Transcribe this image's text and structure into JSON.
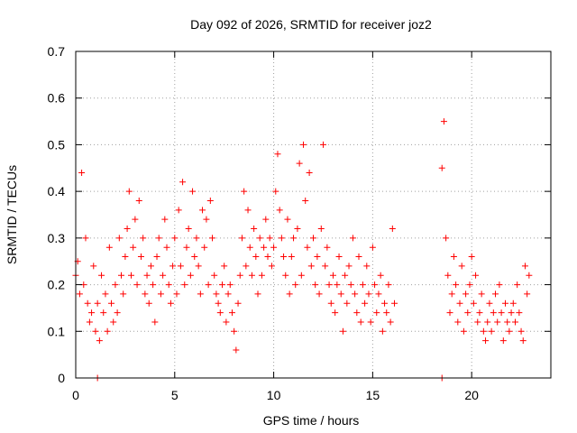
{
  "chart_data": {
    "type": "scatter",
    "title": "Day 092 of 2026, SRMTID for receiver joz2",
    "xlabel": "GPS time / hours",
    "ylabel": "SRMTID / TECUs",
    "xlim": [
      0,
      24
    ],
    "ylim": [
      0,
      0.7
    ],
    "xticks": [
      0,
      5,
      10,
      15,
      20
    ],
    "yticks": [
      0,
      0.1,
      0.2,
      0.3,
      0.4,
      0.5,
      0.6,
      0.7
    ],
    "xtick_labels": [
      "0",
      "5",
      "10",
      "15",
      "20"
    ],
    "ytick_labels": [
      "0",
      "0.1",
      "0.2",
      "0.3",
      "0.4",
      "0.5",
      "0.6",
      "0.7"
    ],
    "grid": true,
    "marker": "+",
    "color": "#ff0000",
    "series": [
      {
        "name": "SRMTID",
        "x": [
          0.0,
          0.1,
          0.2,
          0.3,
          0.4,
          0.5,
          0.6,
          0.7,
          0.8,
          0.9,
          1.0,
          1.1,
          1.2,
          1.3,
          1.4,
          1.5,
          1.6,
          1.7,
          1.8,
          1.9,
          2.0,
          2.1,
          2.2,
          2.3,
          2.4,
          2.5,
          2.6,
          2.7,
          2.8,
          2.9,
          3.0,
          3.1,
          3.2,
          3.3,
          3.4,
          3.5,
          3.6,
          3.7,
          3.8,
          3.9,
          4.0,
          4.1,
          4.2,
          4.3,
          4.4,
          4.5,
          4.6,
          4.7,
          4.8,
          4.9,
          5.0,
          5.1,
          5.2,
          5.3,
          5.4,
          5.5,
          5.6,
          5.7,
          5.8,
          5.9,
          6.0,
          6.1,
          6.2,
          6.3,
          6.4,
          6.5,
          6.6,
          6.7,
          6.8,
          6.9,
          7.0,
          7.1,
          7.2,
          7.3,
          7.4,
          7.5,
          7.6,
          7.7,
          7.8,
          7.9,
          8.0,
          8.1,
          8.2,
          8.3,
          8.4,
          8.5,
          8.6,
          8.7,
          8.8,
          8.9,
          9.0,
          9.1,
          9.2,
          9.3,
          9.4,
          9.5,
          9.6,
          9.7,
          9.8,
          9.9,
          10.0,
          10.1,
          10.2,
          10.3,
          10.4,
          10.5,
          10.6,
          10.7,
          10.8,
          10.9,
          11.0,
          11.1,
          11.2,
          11.3,
          11.4,
          11.5,
          11.6,
          11.7,
          11.8,
          11.9,
          12.0,
          12.1,
          12.2,
          12.3,
          12.4,
          12.5,
          12.6,
          12.7,
          12.8,
          12.9,
          13.0,
          13.1,
          13.2,
          13.3,
          13.4,
          13.5,
          13.6,
          13.7,
          13.8,
          13.9,
          14.0,
          14.1,
          14.2,
          14.3,
          14.4,
          14.5,
          14.6,
          14.7,
          14.8,
          14.9,
          15.0,
          15.1,
          15.2,
          15.3,
          15.4,
          15.5,
          15.6,
          15.7,
          15.8,
          15.9,
          16.0,
          16.1,
          18.5,
          18.6,
          18.7,
          18.8,
          18.9,
          19.0,
          19.1,
          19.2,
          19.3,
          19.4,
          19.5,
          19.6,
          19.7,
          19.8,
          19.9,
          20.0,
          20.1,
          20.2,
          20.3,
          20.4,
          20.5,
          20.6,
          20.7,
          20.8,
          20.9,
          21.0,
          21.1,
          21.2,
          21.3,
          21.4,
          21.5,
          21.6,
          21.7,
          21.8,
          21.9,
          22.0,
          22.1,
          22.2,
          22.3,
          22.4,
          22.5,
          22.6,
          22.7,
          22.8,
          22.9,
          1.1,
          18.5
        ],
        "y": [
          0.22,
          0.25,
          0.18,
          0.44,
          0.2,
          0.3,
          0.16,
          0.12,
          0.14,
          0.24,
          0.1,
          0.16,
          0.08,
          0.22,
          0.14,
          0.18,
          0.1,
          0.28,
          0.16,
          0.12,
          0.2,
          0.14,
          0.3,
          0.22,
          0.18,
          0.26,
          0.32,
          0.4,
          0.22,
          0.28,
          0.34,
          0.2,
          0.38,
          0.26,
          0.3,
          0.18,
          0.22,
          0.16,
          0.24,
          0.2,
          0.12,
          0.26,
          0.3,
          0.18,
          0.22,
          0.34,
          0.28,
          0.2,
          0.16,
          0.24,
          0.3,
          0.18,
          0.36,
          0.24,
          0.42,
          0.2,
          0.28,
          0.32,
          0.22,
          0.4,
          0.26,
          0.3,
          0.24,
          0.18,
          0.36,
          0.28,
          0.34,
          0.2,
          0.38,
          0.3,
          0.22,
          0.18,
          0.16,
          0.14,
          0.2,
          0.24,
          0.12,
          0.18,
          0.2,
          0.14,
          0.1,
          0.06,
          0.16,
          0.22,
          0.3,
          0.4,
          0.24,
          0.36,
          0.28,
          0.22,
          0.32,
          0.26,
          0.18,
          0.3,
          0.22,
          0.28,
          0.34,
          0.26,
          0.3,
          0.24,
          0.28,
          0.4,
          0.48,
          0.36,
          0.3,
          0.26,
          0.22,
          0.34,
          0.18,
          0.26,
          0.3,
          0.2,
          0.32,
          0.46,
          0.22,
          0.5,
          0.38,
          0.28,
          0.44,
          0.24,
          0.3,
          0.2,
          0.26,
          0.18,
          0.32,
          0.5,
          0.24,
          0.28,
          0.2,
          0.16,
          0.22,
          0.14,
          0.2,
          0.26,
          0.18,
          0.1,
          0.22,
          0.16,
          0.24,
          0.2,
          0.3,
          0.18,
          0.14,
          0.26,
          0.12,
          0.2,
          0.16,
          0.24,
          0.18,
          0.12,
          0.28,
          0.2,
          0.14,
          0.18,
          0.22,
          0.1,
          0.16,
          0.14,
          0.2,
          0.12,
          0.32,
          0.16,
          0.45,
          0.55,
          0.3,
          0.22,
          0.14,
          0.18,
          0.26,
          0.2,
          0.12,
          0.16,
          0.24,
          0.1,
          0.18,
          0.14,
          0.2,
          0.26,
          0.16,
          0.22,
          0.12,
          0.14,
          0.18,
          0.1,
          0.08,
          0.12,
          0.16,
          0.1,
          0.14,
          0.18,
          0.12,
          0.2,
          0.14,
          0.08,
          0.16,
          0.12,
          0.1,
          0.14,
          0.16,
          0.12,
          0.2,
          0.14,
          0.1,
          0.08,
          0.24,
          0.18,
          0.22,
          0.0,
          0.0
        ]
      }
    ]
  }
}
